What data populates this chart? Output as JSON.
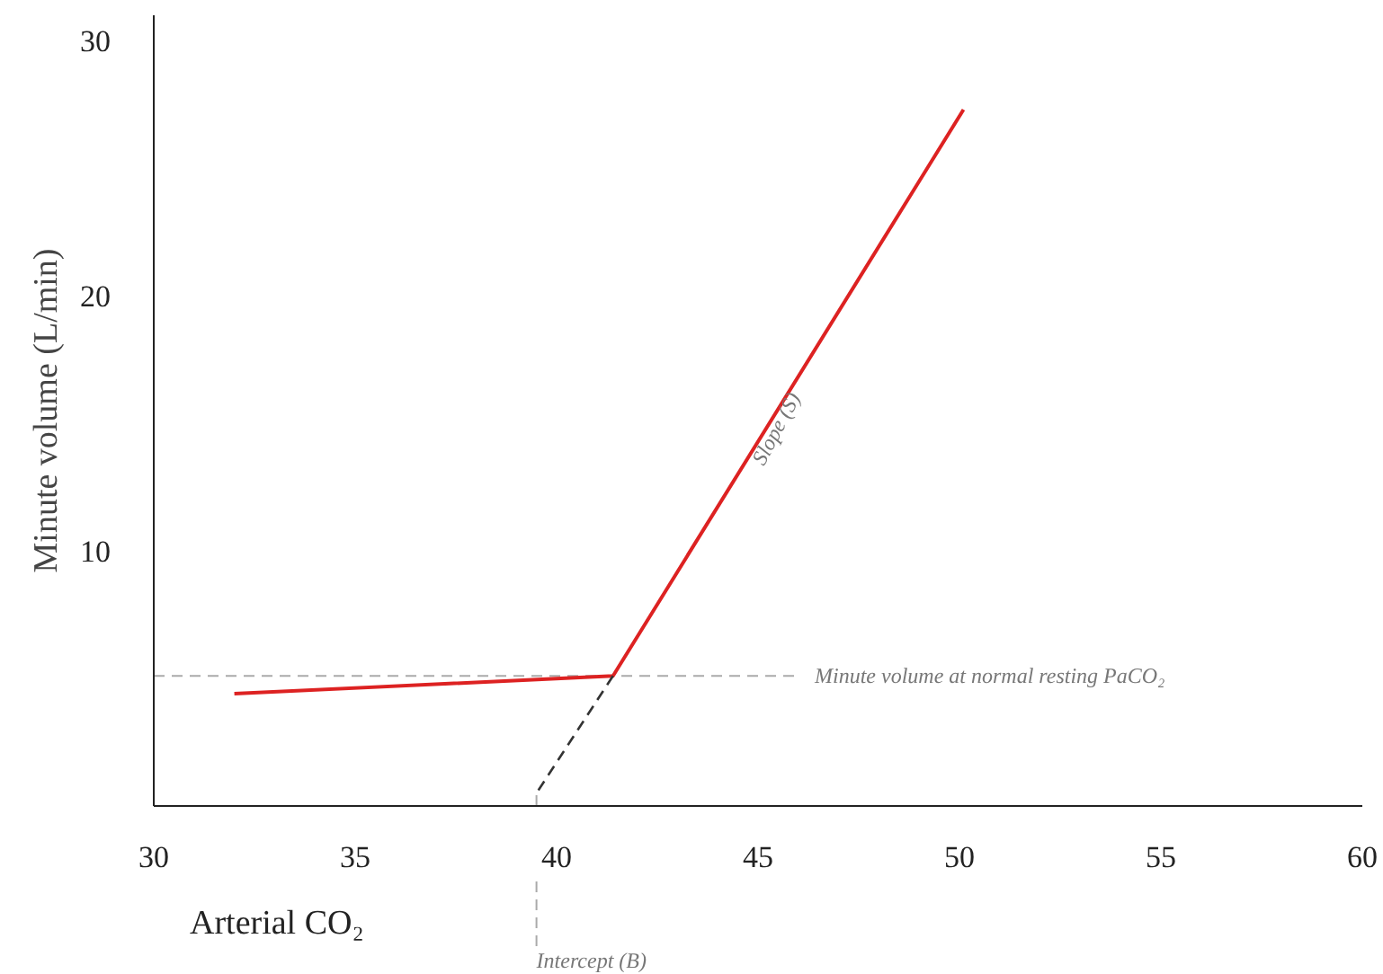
{
  "chart_data": {
    "type": "line",
    "xlabel": "Arterial CO₂",
    "ylabel": "Minute volume (L/min)",
    "xlim": [
      30,
      60
    ],
    "xticks": [
      30,
      35,
      40,
      45,
      50,
      55,
      60
    ],
    "ylim": [
      0,
      31
    ],
    "yticks": [
      10,
      20,
      30
    ],
    "grid": false,
    "line_style": "solid",
    "marker": "none",
    "series": [
      {
        "color": "#dd2222",
        "x": [
          32.0,
          41.4,
          50.1
        ],
        "values": [
          4.4,
          5.1,
          27.3
        ]
      },
      {
        "color": "#333333",
        "type": "line",
        "line_style": "dashed",
        "x": [
          41.4,
          39.5
        ],
        "values": [
          5.1,
          0.5
        ]
      }
    ],
    "ref_lines": [
      {
        "axis": "y",
        "value": 5.1,
        "label": "Minute volume at normal resting PaCO₂",
        "color": "#aaaaaa",
        "line_style": "dashed"
      },
      {
        "axis": "x",
        "value": 39.5,
        "label": "Intercept (B)",
        "color": "#aaaaaa",
        "line_style": "dashed"
      }
    ],
    "annotations": [
      "Slope (S)"
    ]
  }
}
